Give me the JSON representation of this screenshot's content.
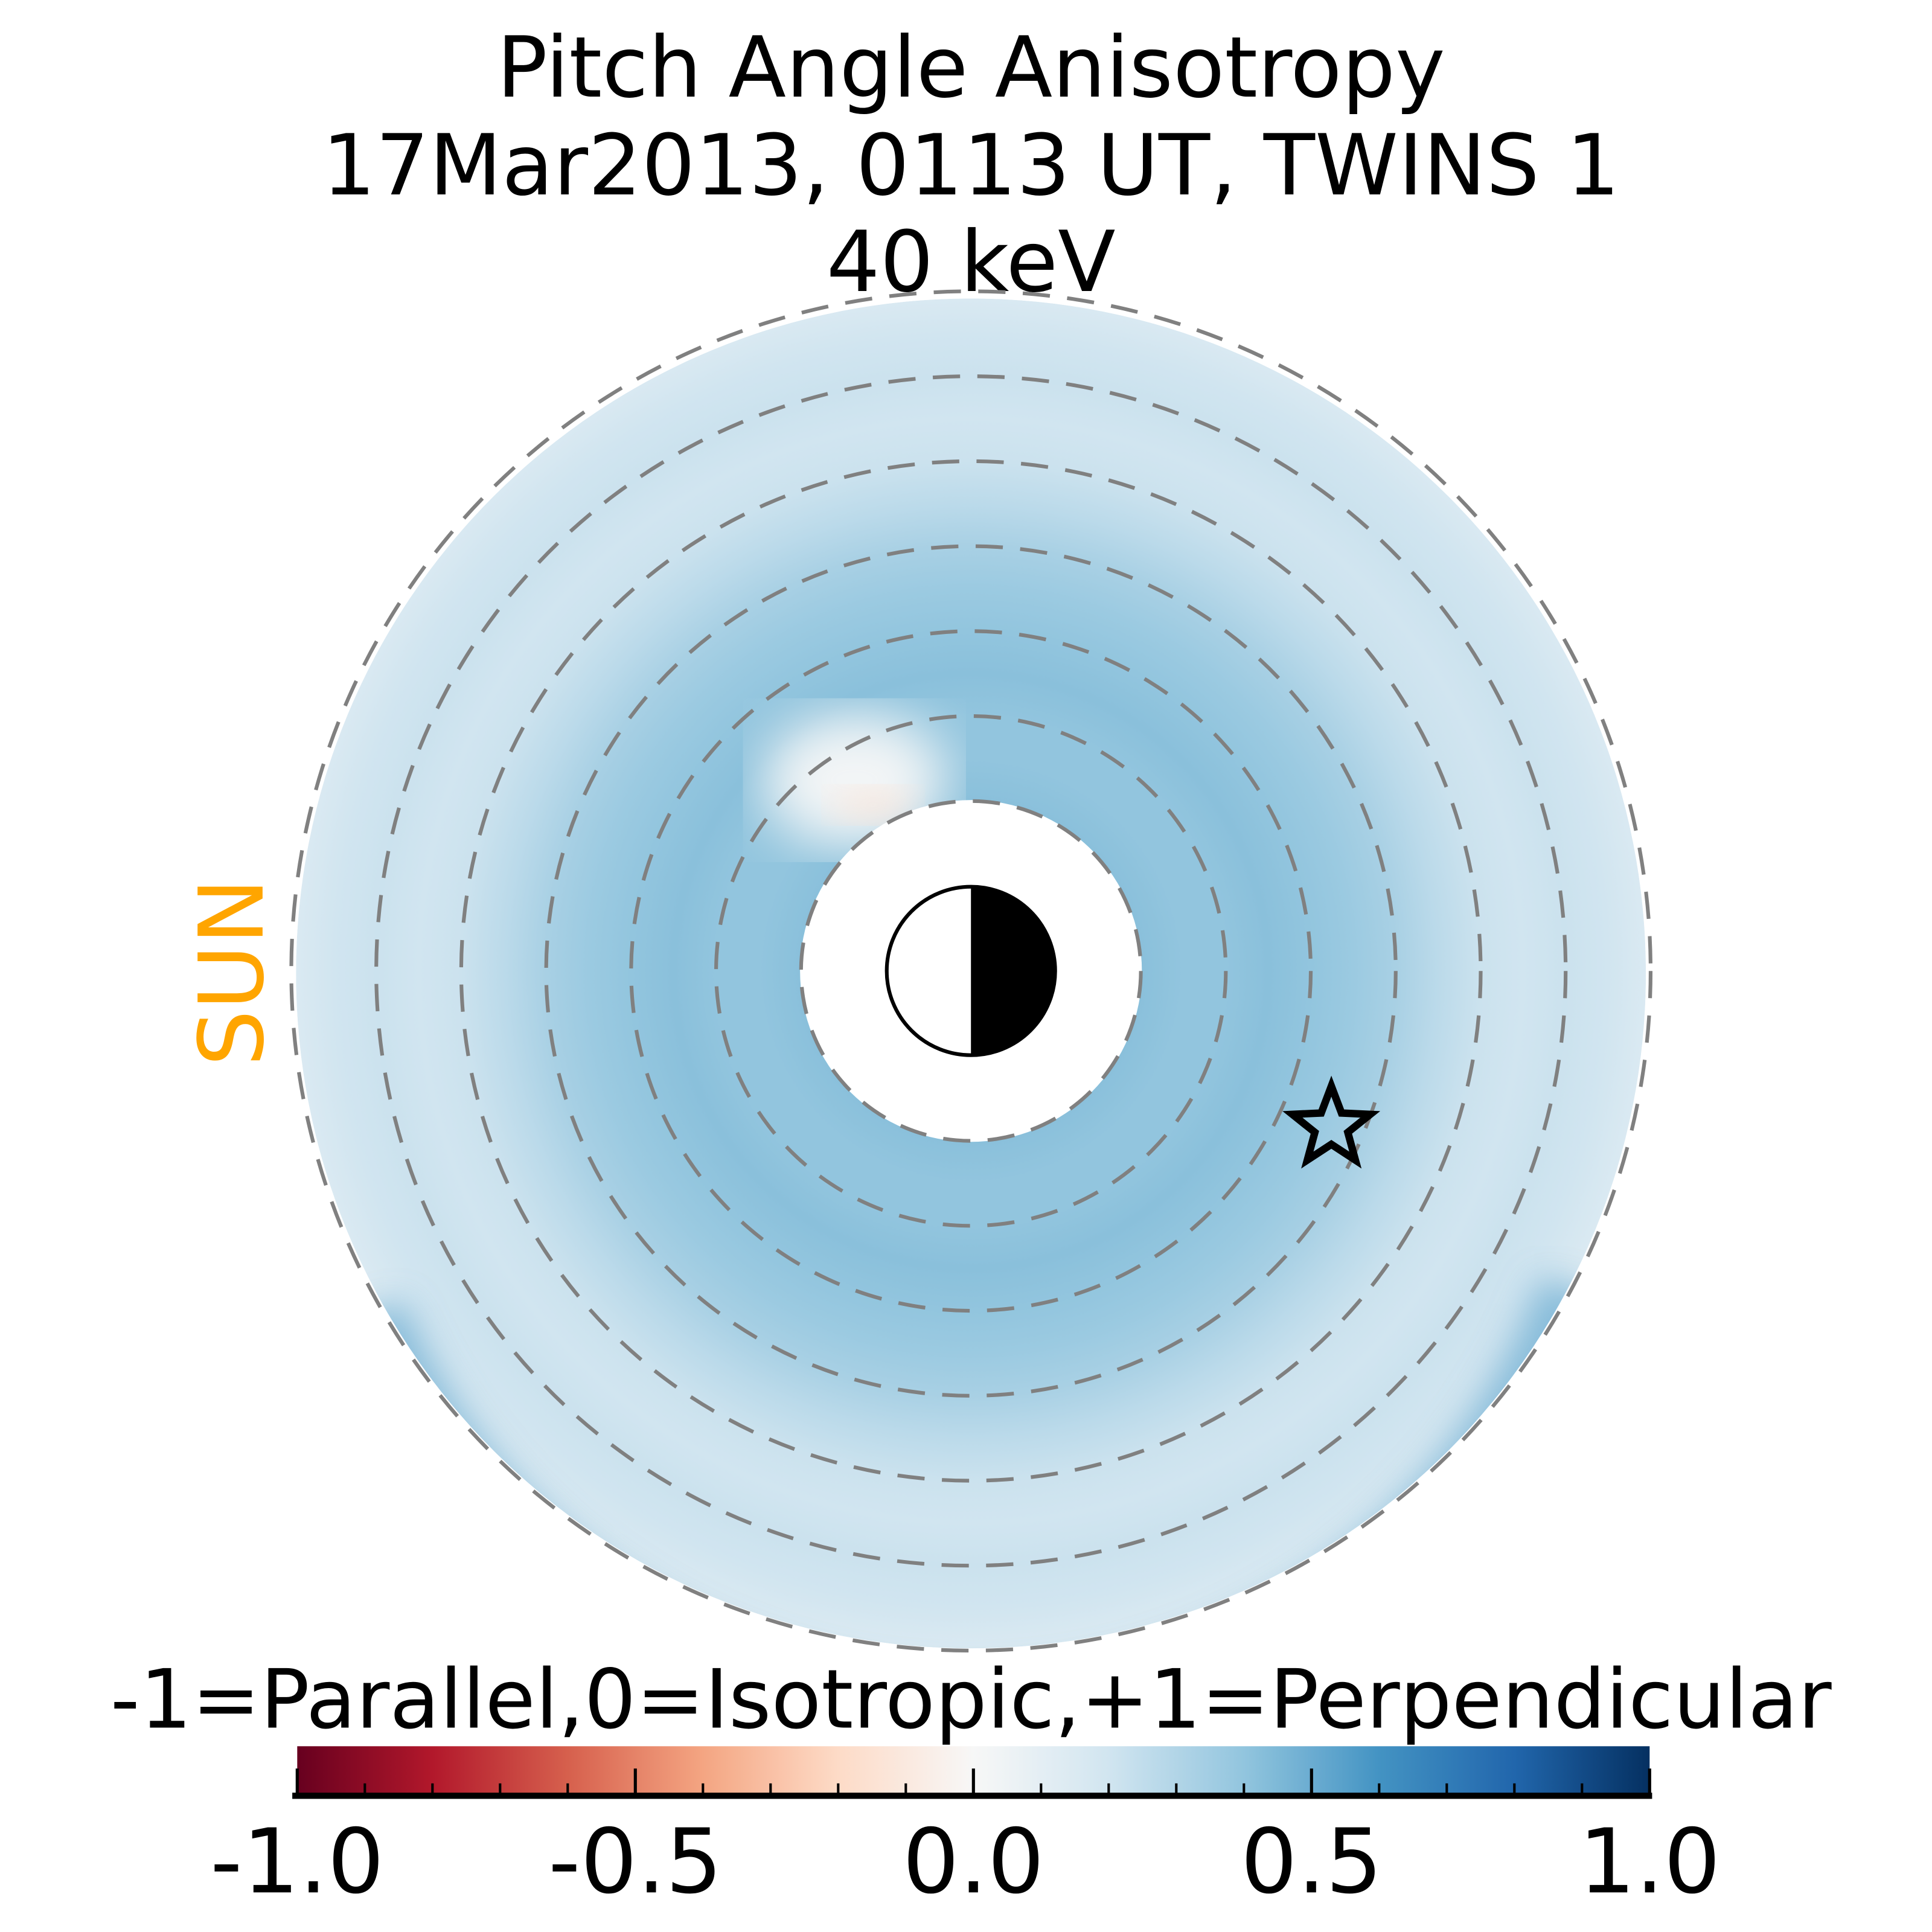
{
  "chart_data": {
    "type": "heatmap",
    "title": [
      "Pitch Angle Anisotropy",
      "17Mar2013, 0113 UT,  TWINS 1",
      "40 keV"
    ],
    "projection": "polar equatorial map, Earth at center",
    "sun_label": "SUN",
    "sun_direction": "left",
    "ring_radii_RE": [
      2,
      3,
      4,
      5,
      6,
      7,
      8
    ],
    "radial_profile": {
      "r_RE": [
        2.0,
        2.5,
        3.0,
        3.5,
        4.0,
        4.5,
        5.0,
        5.5,
        6.0,
        6.5,
        7.0,
        7.5,
        8.0
      ],
      "value": [
        0.42,
        0.4,
        0.4,
        0.42,
        0.4,
        0.37,
        0.33,
        0.27,
        0.22,
        0.2,
        0.22,
        0.2,
        0.15
      ]
    },
    "features": [
      {
        "name": "near-isotropic region",
        "location": "pre-noon inner edge",
        "value": -0.05
      },
      {
        "name": "enhanced perpendicular band",
        "location": "night/dusk side outer ring",
        "value": 0.5
      }
    ],
    "colorbar": {
      "label": "-1=Parallel,0=Isotropic,+1=Perpendicular",
      "colormap": "RdBu",
      "range": [
        -1.0,
        1.0
      ],
      "ticks": [
        "-1.0",
        "-0.5",
        "0.0",
        "0.5",
        "1.0"
      ],
      "tick_values": [
        -1.0,
        -0.5,
        0.0,
        0.5,
        1.0
      ],
      "minor_tick_step": 0.1
    },
    "colors": [
      "#67001f",
      "#b2182b",
      "#d6604d",
      "#f4a582",
      "#fddbc7",
      "#f7f7f7",
      "#d1e5f0",
      "#92c5de",
      "#4393c3",
      "#2166ac",
      "#053061"
    ],
    "sun_color": "#FFA500",
    "markers": [
      {
        "name": "spacecraft-star",
        "symbol": "star"
      }
    ]
  }
}
